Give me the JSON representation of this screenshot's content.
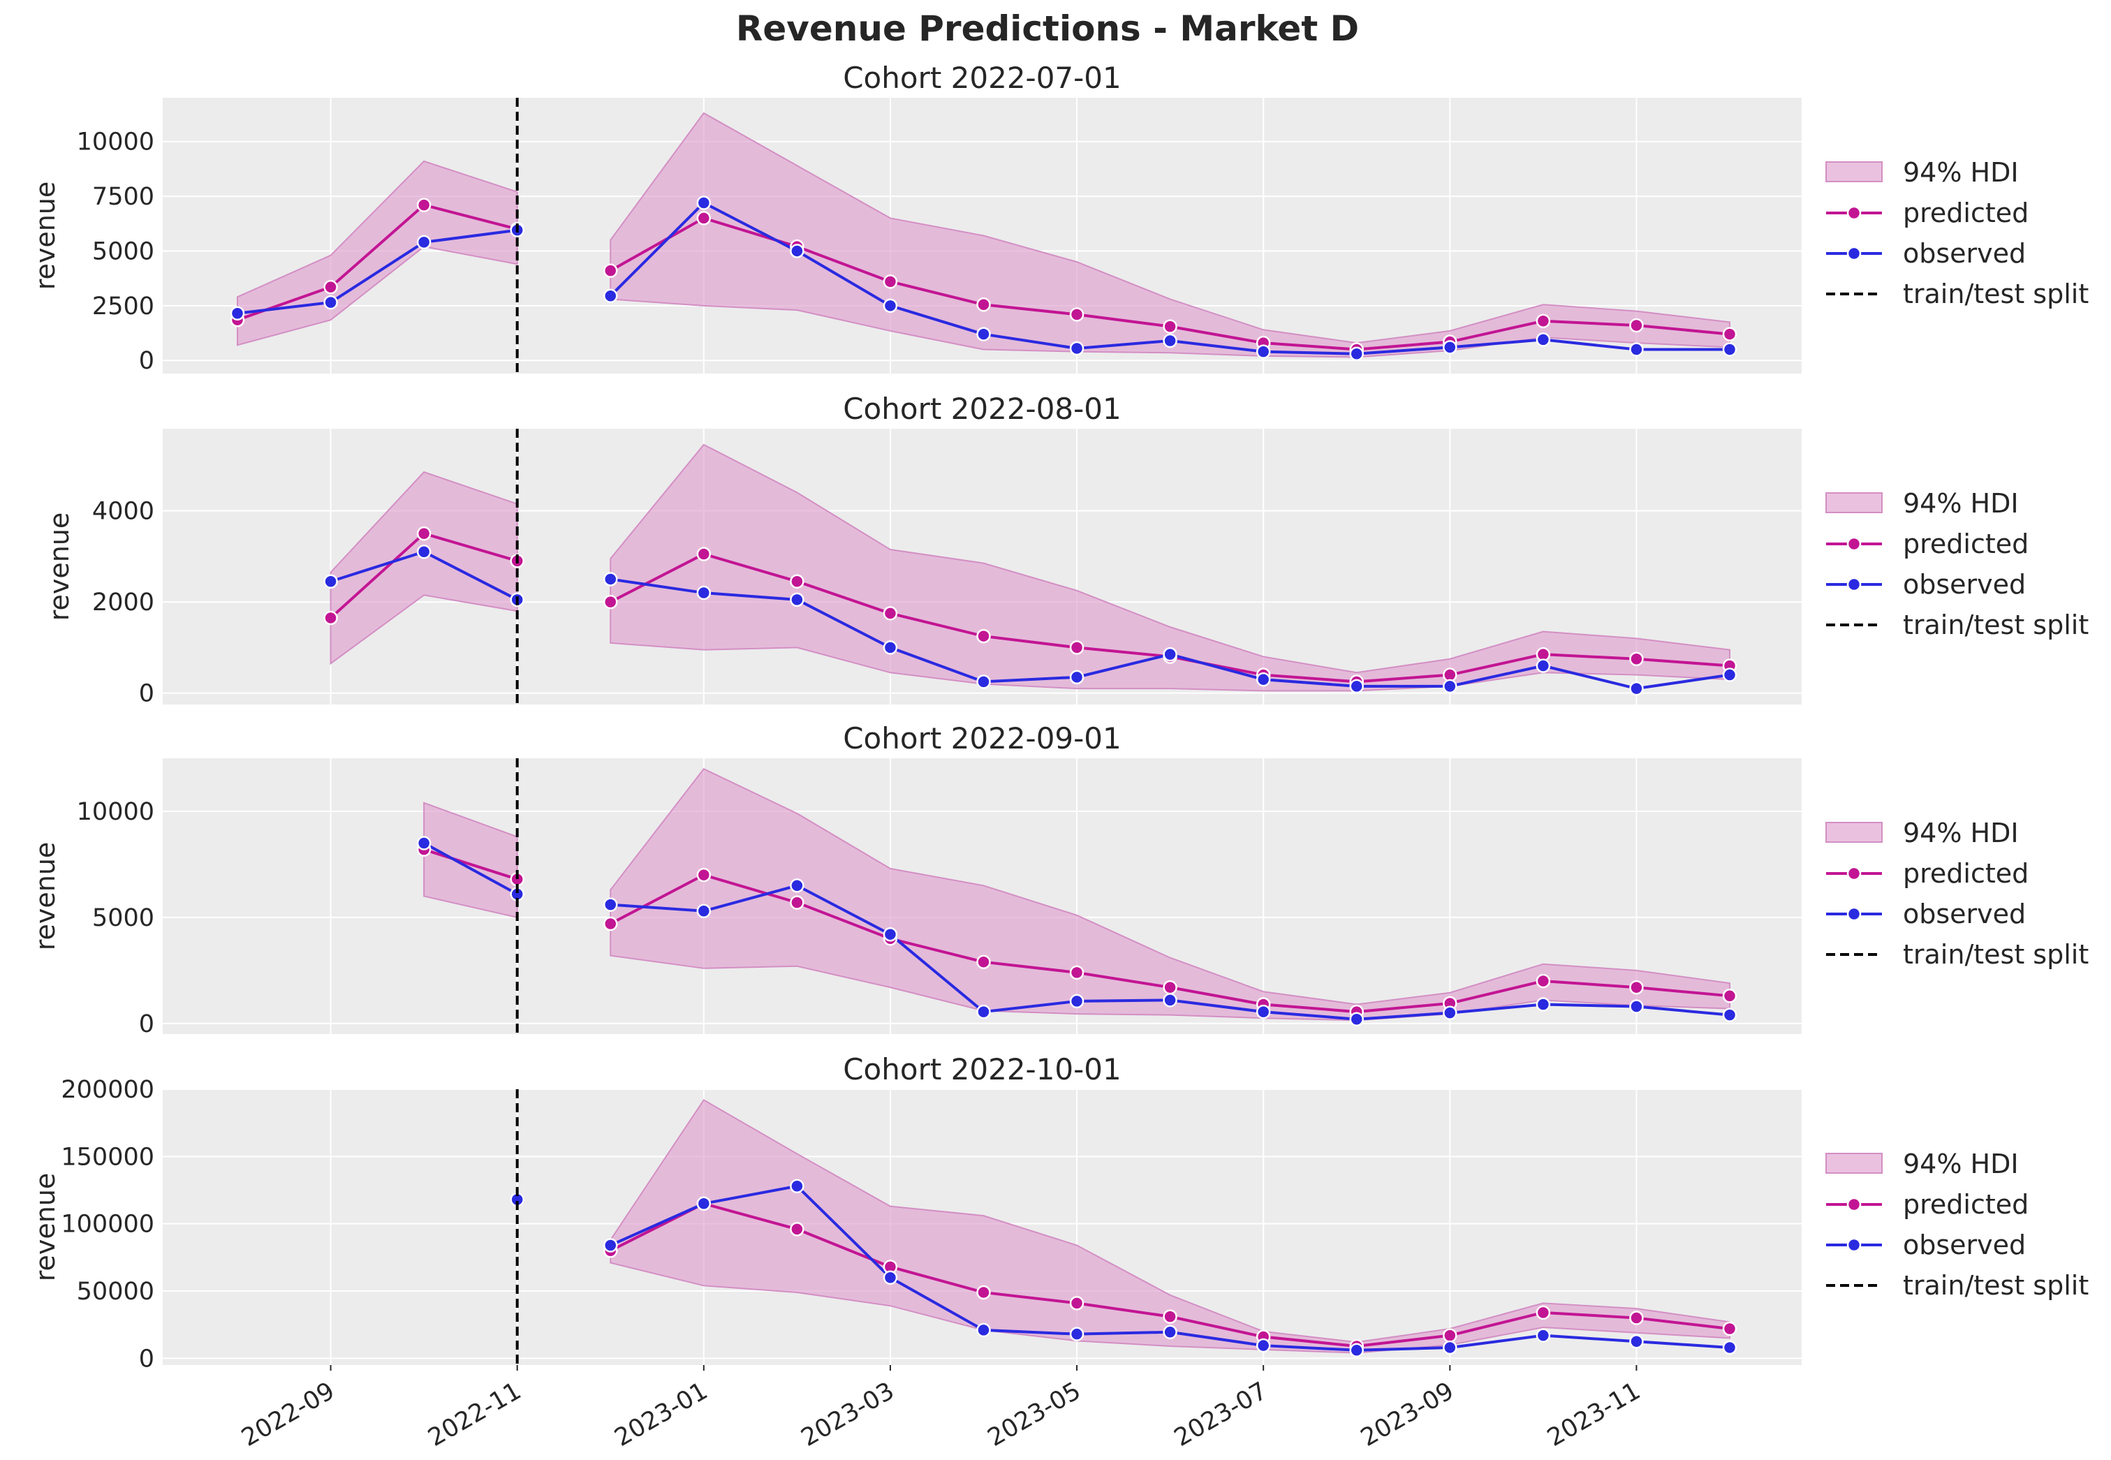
{
  "figure": {
    "title": "Revenue Predictions - Market D"
  },
  "legend": {
    "placement": "right",
    "labels": {
      "hdi": "94% HDI",
      "predicted": "predicted",
      "observed": "observed",
      "split": "train/test split"
    }
  },
  "colors": {
    "predicted": "#c21593",
    "observed": "#2a2ae0",
    "hdi_fill": "#e0a0d0",
    "hdi_edge": "#d38fc4",
    "split": "#000000",
    "panel_bg": "#ececec",
    "grid": "#ffffff"
  },
  "chart_data": [
    {
      "type": "line",
      "title": "Cohort 2022-07-01",
      "ylabel": "revenue",
      "ylim": [
        -600,
        12000
      ],
      "yticks": [
        0,
        2500,
        5000,
        7500,
        10000
      ],
      "xticks": [
        "2022-09",
        "2022-11",
        "2023-01",
        "2023-03",
        "2023-05",
        "2023-07",
        "2023-09",
        "2023-11"
      ],
      "split": "2022-11",
      "dates": [
        "2022-08",
        "2022-09",
        "2022-10",
        "2022-11",
        "2022-12",
        "2023-01",
        "2023-02",
        "2023-03",
        "2023-04",
        "2023-05",
        "2023-06",
        "2023-07",
        "2023-08",
        "2023-09",
        "2023-10",
        "2023-11",
        "2023-12"
      ],
      "predicted": [
        1850,
        3350,
        7100,
        6000,
        4100,
        6500,
        5200,
        3600,
        2550,
        2100,
        1550,
        800,
        500,
        850,
        1800,
        1600,
        1200
      ],
      "observed": [
        2150,
        2650,
        5400,
        5950,
        2950,
        7200,
        5000,
        2500,
        1200,
        550,
        900,
        400,
        300,
        600,
        950,
        500,
        500
      ],
      "hdi_low": [
        700,
        1850,
        5200,
        4400,
        2800,
        2500,
        2300,
        1350,
        500,
        400,
        350,
        200,
        150,
        450,
        1050,
        800,
        600
      ],
      "hdi_high": [
        2900,
        4800,
        9100,
        7700,
        5500,
        11300,
        8900,
        6500,
        5700,
        4500,
        2800,
        1400,
        800,
        1350,
        2550,
        2250,
        1750
      ]
    },
    {
      "type": "line",
      "title": "Cohort 2022-08-01",
      "ylabel": "revenue",
      "ylim": [
        -250,
        5800
      ],
      "yticks": [
        0,
        2000,
        4000
      ],
      "xticks": [
        "2022-09",
        "2022-11",
        "2023-01",
        "2023-03",
        "2023-05",
        "2023-07",
        "2023-09",
        "2023-11"
      ],
      "split": "2022-11",
      "dates": [
        "2022-09",
        "2022-10",
        "2022-11",
        "2022-12",
        "2023-01",
        "2023-02",
        "2023-03",
        "2023-04",
        "2023-05",
        "2023-06",
        "2023-07",
        "2023-08",
        "2023-09",
        "2023-10",
        "2023-11",
        "2023-12"
      ],
      "predicted": [
        1650,
        3500,
        2900,
        2000,
        3050,
        2450,
        1750,
        1250,
        1000,
        800,
        400,
        250,
        400,
        850,
        750,
        600
      ],
      "observed": [
        2450,
        3100,
        2050,
        2500,
        2200,
        2050,
        1000,
        250,
        350,
        850,
        300,
        150,
        150,
        600,
        100,
        400
      ],
      "hdi_low": [
        650,
        2150,
        1800,
        1100,
        950,
        1000,
        450,
        200,
        100,
        100,
        50,
        50,
        150,
        450,
        400,
        300
      ],
      "hdi_high": [
        2650,
        4850,
        4150,
        2950,
        5450,
        4400,
        3150,
        2850,
        2250,
        1450,
        800,
        450,
        750,
        1350,
        1200,
        950
      ]
    },
    {
      "type": "line",
      "title": "Cohort 2022-09-01",
      "ylabel": "revenue",
      "ylim": [
        -500,
        12500
      ],
      "yticks": [
        0,
        5000,
        10000
      ],
      "xticks": [
        "2022-09",
        "2022-11",
        "2023-01",
        "2023-03",
        "2023-05",
        "2023-07",
        "2023-09",
        "2023-11"
      ],
      "split": "2022-11",
      "dates": [
        "2022-10",
        "2022-11",
        "2022-12",
        "2023-01",
        "2023-02",
        "2023-03",
        "2023-04",
        "2023-05",
        "2023-06",
        "2023-07",
        "2023-08",
        "2023-09",
        "2023-10",
        "2023-11",
        "2023-12"
      ],
      "predicted": [
        8200,
        6800,
        4700,
        7000,
        5700,
        4000,
        2900,
        2400,
        1700,
        900,
        550,
        950,
        2000,
        1700,
        1300
      ],
      "observed": [
        8500,
        6100,
        5600,
        5300,
        6500,
        4200,
        550,
        1050,
        1100,
        550,
        200,
        500,
        900,
        800,
        400
      ],
      "hdi_low": [
        6000,
        5000,
        3200,
        2600,
        2700,
        1700,
        600,
        450,
        400,
        250,
        150,
        450,
        1100,
        850,
        700
      ],
      "hdi_high": [
        10400,
        8800,
        6300,
        12000,
        9900,
        7300,
        6500,
        5100,
        3100,
        1500,
        900,
        1450,
        2800,
        2500,
        1900
      ]
    },
    {
      "type": "line",
      "title": "Cohort 2022-10-01",
      "ylabel": "revenue",
      "ylim": [
        -5000,
        200000
      ],
      "yticks": [
        0,
        50000,
        100000,
        150000,
        200000
      ],
      "xticks": [
        "2022-09",
        "2022-11",
        "2023-01",
        "2023-03",
        "2023-05",
        "2023-07",
        "2023-09",
        "2023-11"
      ],
      "split": "2022-11",
      "dates": [
        "2022-11",
        "2022-12",
        "2023-01",
        "2023-02",
        "2023-03",
        "2023-04",
        "2023-05",
        "2023-06",
        "2023-07",
        "2023-08",
        "2023-09",
        "2023-10",
        "2023-11",
        "2023-12"
      ],
      "predicted": [
        null,
        80000,
        115000,
        96000,
        68000,
        49000,
        41000,
        31000,
        16000,
        9000,
        17000,
        34000,
        30000,
        22000
      ],
      "observed": [
        118000,
        84000,
        115000,
        128000,
        60000,
        21000,
        18000,
        19500,
        9500,
        6000,
        8000,
        17000,
        12500,
        8000
      ],
      "hdi_low": [
        null,
        71000,
        54000,
        49000,
        39000,
        21000,
        13000,
        9000,
        6500,
        4000,
        10000,
        23000,
        19000,
        15000
      ],
      "hdi_high": [
        null,
        88000,
        192000,
        152000,
        113000,
        106000,
        84000,
        47000,
        20000,
        12000,
        22000,
        41000,
        37000,
        27000
      ]
    }
  ]
}
